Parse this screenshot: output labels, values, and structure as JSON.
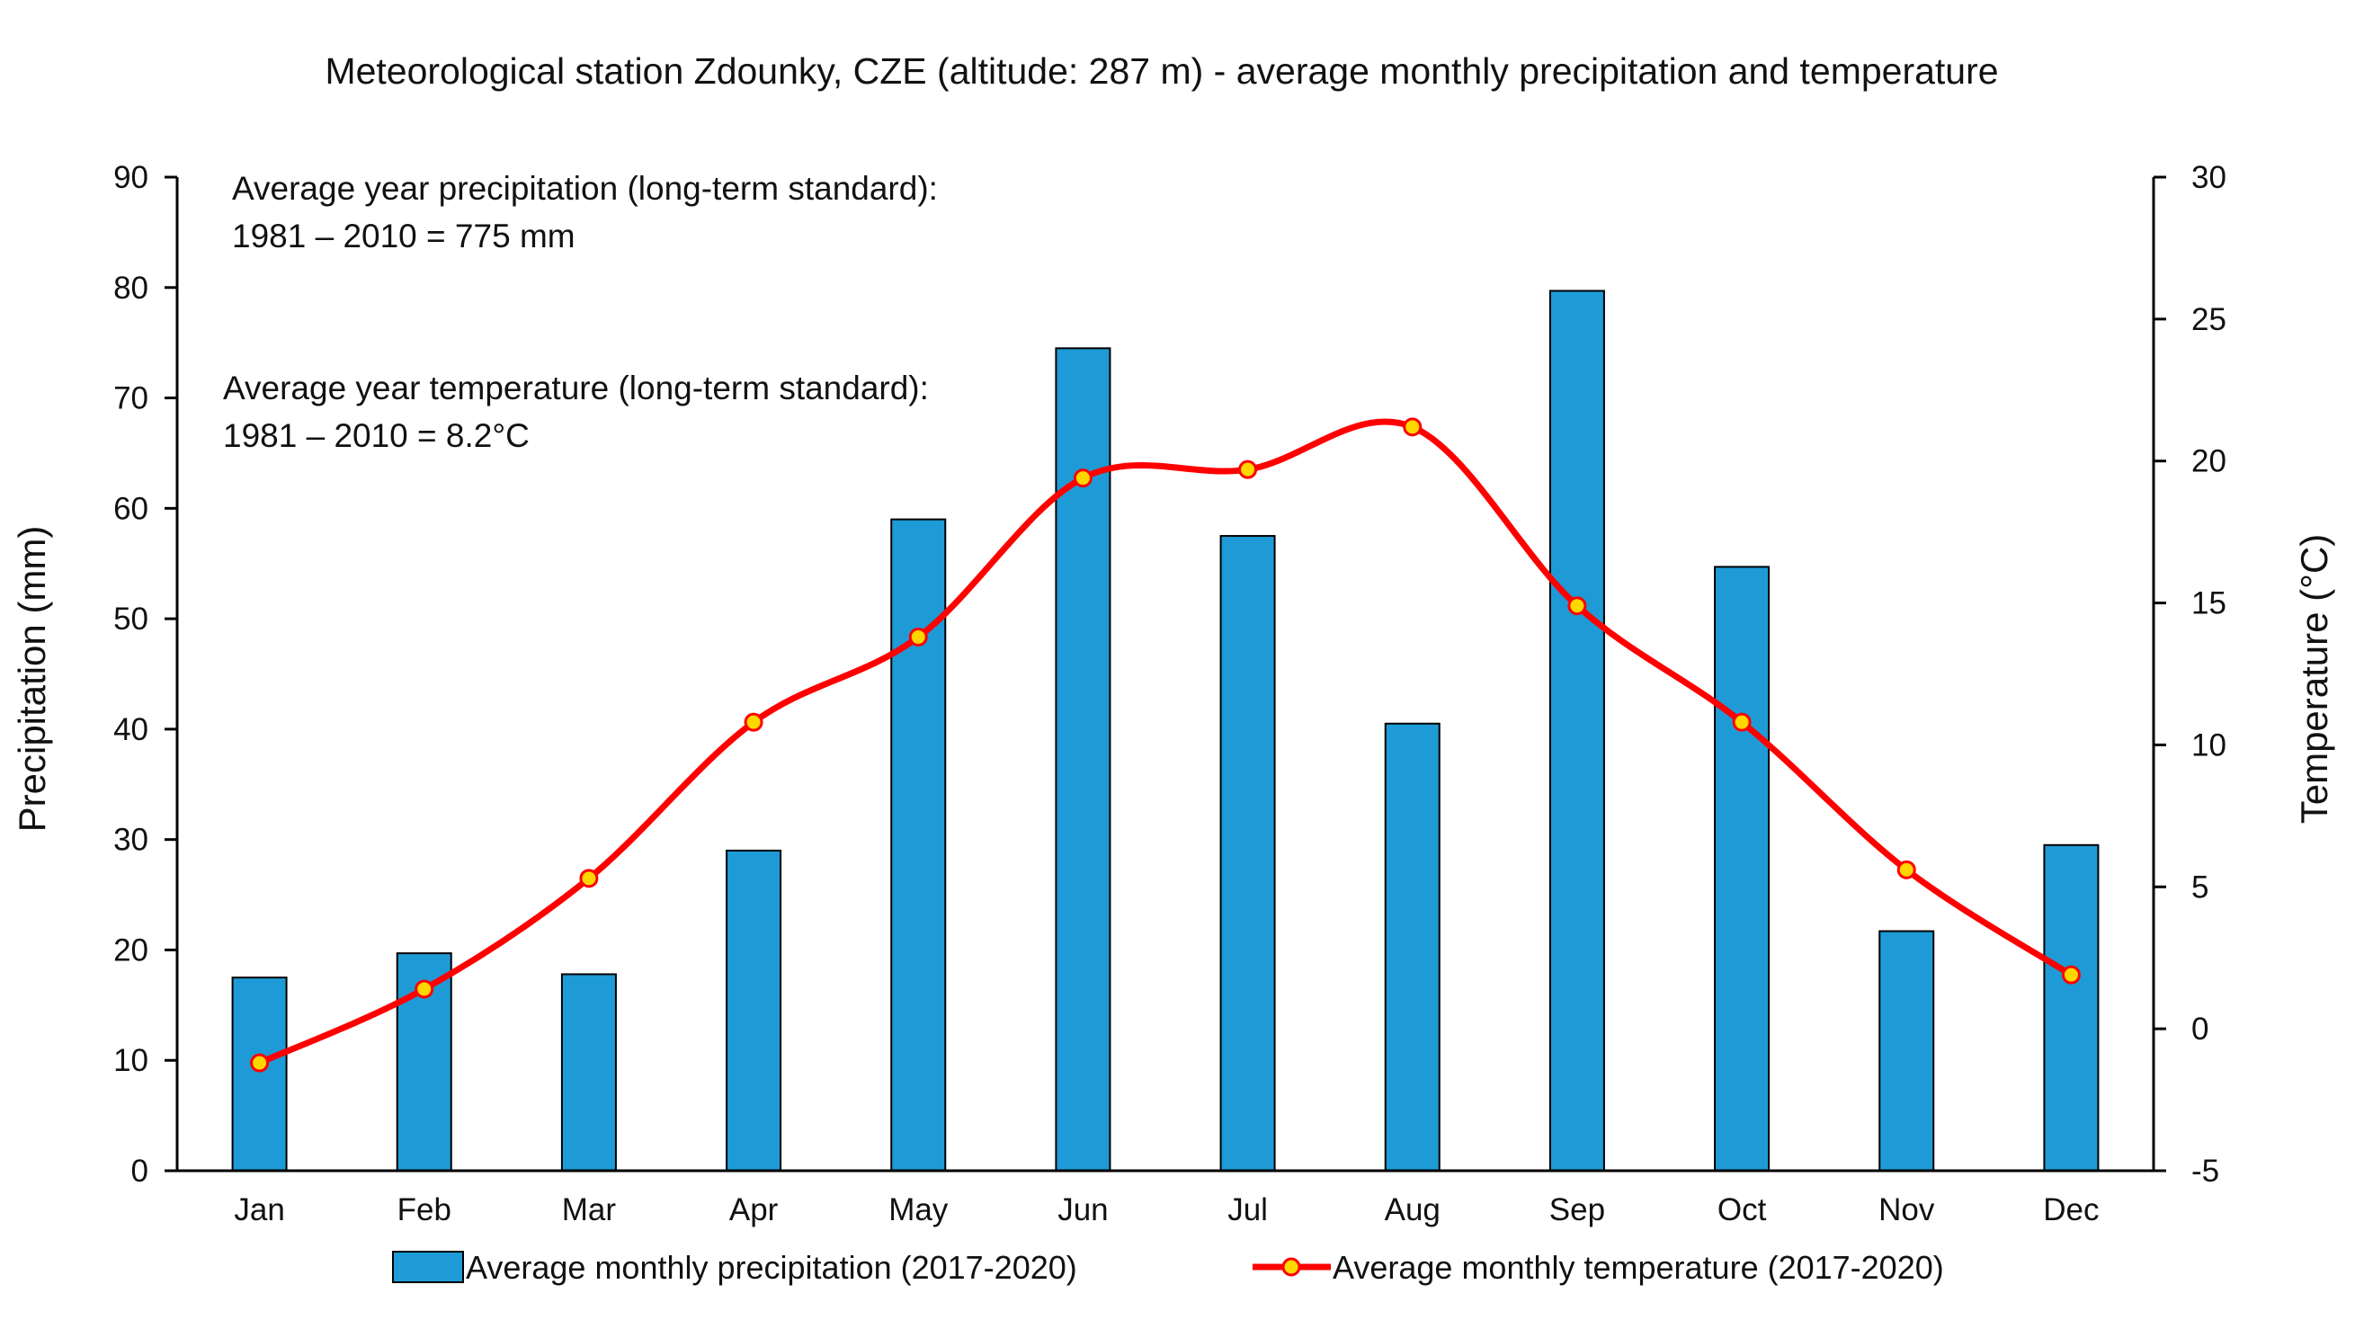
{
  "chart_data": {
    "type": "bar",
    "title": "Meteorological station Zdounky, CZE (altitude: 287 m) - average monthly precipitation and temperature",
    "categories": [
      "Jan",
      "Feb",
      "Mar",
      "Apr",
      "May",
      "Jun",
      "Jul",
      "Aug",
      "Sep",
      "Oct",
      "Nov",
      "Dec"
    ],
    "ylabel": "Precipitation (mm)",
    "ylim": [
      0,
      90
    ],
    "yticks": [
      0,
      10,
      20,
      30,
      40,
      50,
      60,
      70,
      80,
      90
    ],
    "y2label": "Temperature (°C)",
    "y2lim": [
      -5,
      30
    ],
    "y2ticks": [
      -5,
      0,
      5,
      10,
      15,
      20,
      25,
      30
    ],
    "grid": false,
    "legend_position": "bottom",
    "series": [
      {
        "name": "Average monthly precipitation (2017-2020)",
        "type": "bar",
        "axis": "left",
        "color": "#1e9bd7",
        "values": [
          17.5,
          19.7,
          17.8,
          29.0,
          59.0,
          74.5,
          57.5,
          40.5,
          79.7,
          54.7,
          21.7,
          29.5
        ]
      },
      {
        "name": "Average monthly temperature (2017-2020)",
        "type": "line",
        "axis": "right",
        "color": "#ff0000",
        "marker_color": "#ffd700",
        "values": [
          -1.2,
          1.4,
          5.3,
          10.8,
          13.8,
          19.4,
          19.7,
          21.2,
          14.9,
          10.8,
          5.6,
          1.9
        ]
      }
    ],
    "annotations": [
      {
        "lines": [
          "Average year precipitation (long-term standard):",
          "1981 – 2010 = 775 mm"
        ]
      },
      {
        "lines": [
          "Average year temperature (long-term standard):",
          "1981 – 2010 = 8.2°C"
        ]
      }
    ]
  }
}
